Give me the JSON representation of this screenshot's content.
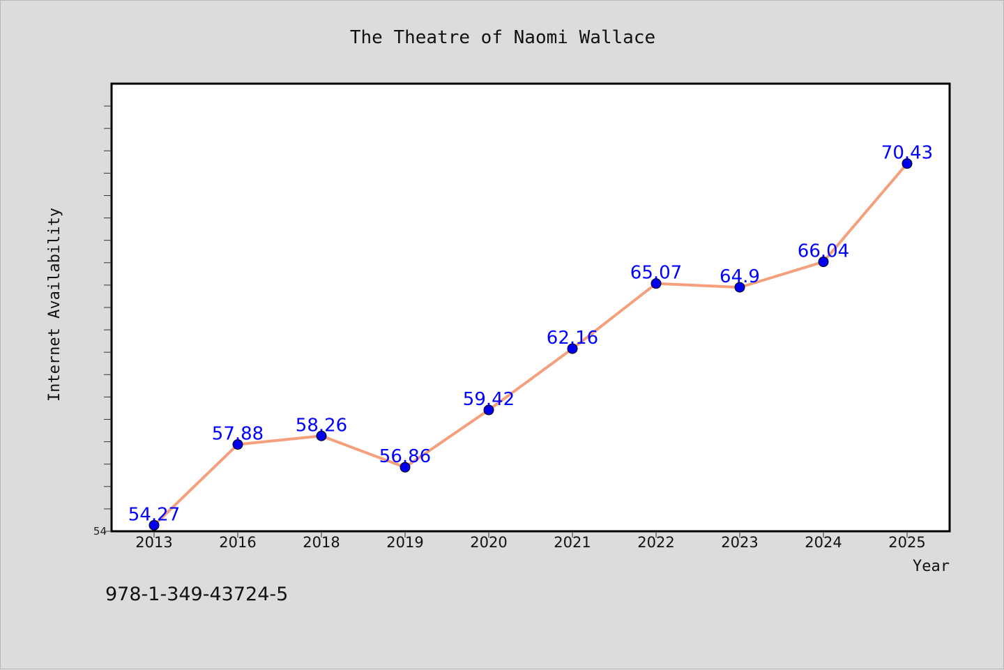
{
  "chart_data": {
    "type": "line",
    "title": "The Theatre of Naomi Wallace",
    "xlabel": "Year",
    "ylabel": "Internet Availability",
    "x": [
      "2013",
      "2016",
      "2018",
      "2019",
      "2020",
      "2021",
      "2022",
      "2023",
      "2024",
      "2025"
    ],
    "series": [
      {
        "values": [
          54.27,
          57.88,
          58.26,
          56.86,
          59.42,
          62.16,
          65.07,
          64.9,
          66.04,
          70.43
        ]
      }
    ],
    "ylim": [
      54,
      74
    ],
    "y_tick_labels": [
      "54"
    ],
    "y_minor_step": 1,
    "grid": false,
    "data_labels": true
  },
  "colors": {
    "background": "#dcdcdc",
    "plot_background": "#ffffff",
    "line": "#f4a07c",
    "marker": "#0000ee",
    "label": "#0000ff"
  },
  "footer": {
    "isbn": "978-1-349-43724-5"
  }
}
